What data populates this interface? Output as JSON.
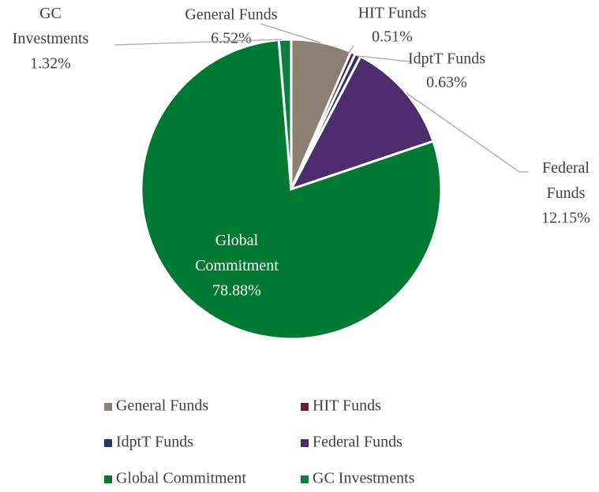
{
  "chart_data": {
    "type": "pie",
    "categories": [
      "General Funds",
      "HIT Funds",
      "IdptT Funds",
      "Federal Funds",
      "Global Commitment",
      "GC Investments"
    ],
    "values": [
      6.52,
      0.51,
      0.63,
      12.15,
      78.88,
      1.32
    ],
    "value_labels": [
      "6.52%",
      "0.51%",
      "0.63%",
      "12.15%",
      "78.88%",
      "1.32%"
    ],
    "colors": [
      "#8c8075",
      "#6e1c3c",
      "#1f3864",
      "#4d2d6e",
      "#007a33",
      "#0b7f3f"
    ],
    "legend": "bottom"
  }
}
